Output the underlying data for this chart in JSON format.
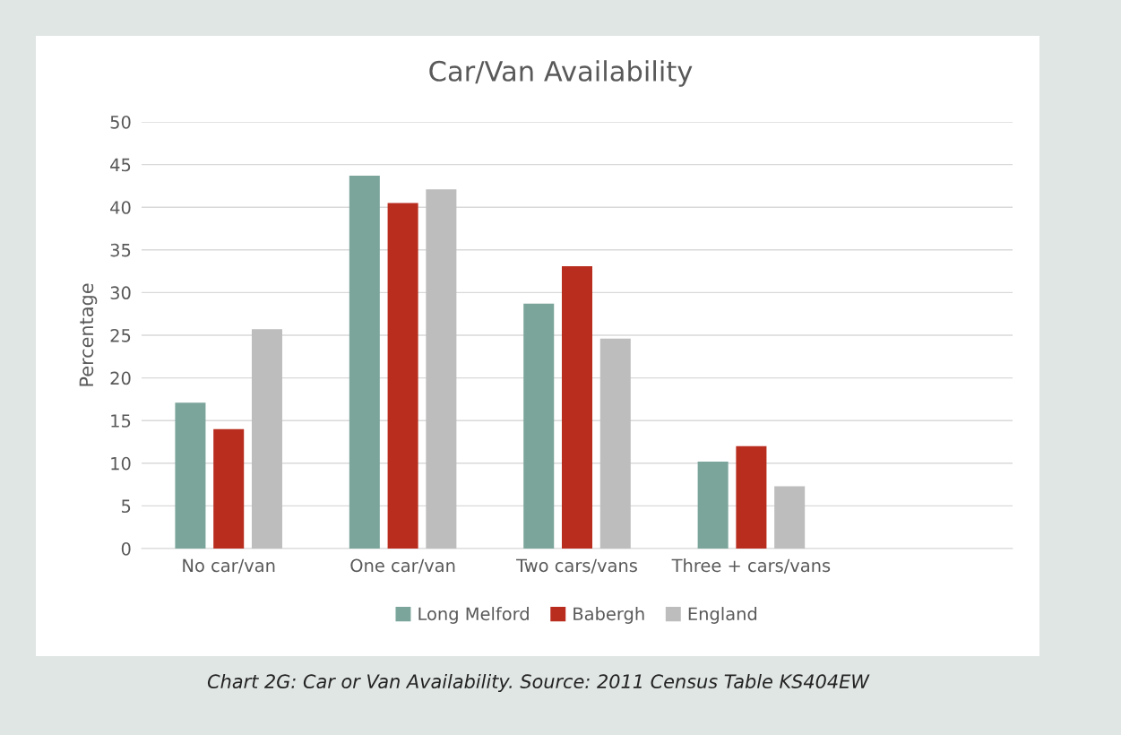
{
  "chart_data": {
    "type": "bar",
    "title": "Car/Van Availability",
    "ylabel": "Percentage",
    "categories": [
      "No car/van",
      "One car/van",
      "Two cars/vans",
      "Three + cars/vans",
      null
    ],
    "series": [
      {
        "name": "Long Melford",
        "color": "#7ba59b",
        "values": [
          17.1,
          43.7,
          28.7,
          10.2,
          null
        ]
      },
      {
        "name": "Babergh",
        "color": "#b92d1f",
        "values": [
          14.0,
          40.5,
          33.1,
          12.0,
          null
        ]
      },
      {
        "name": "England",
        "color": "#bdbdbd",
        "values": [
          25.7,
          42.1,
          24.6,
          7.3,
          null
        ]
      }
    ],
    "ylim": [
      0,
      50
    ],
    "yticks": [
      0,
      5,
      10,
      15,
      20,
      25,
      30,
      35,
      40,
      45,
      50
    ],
    "grid": "y",
    "legend": "bottom",
    "annotations": [
      "Chart 2G: Car or Van Availability. Source: 2011 Census Table KS404EW"
    ]
  }
}
